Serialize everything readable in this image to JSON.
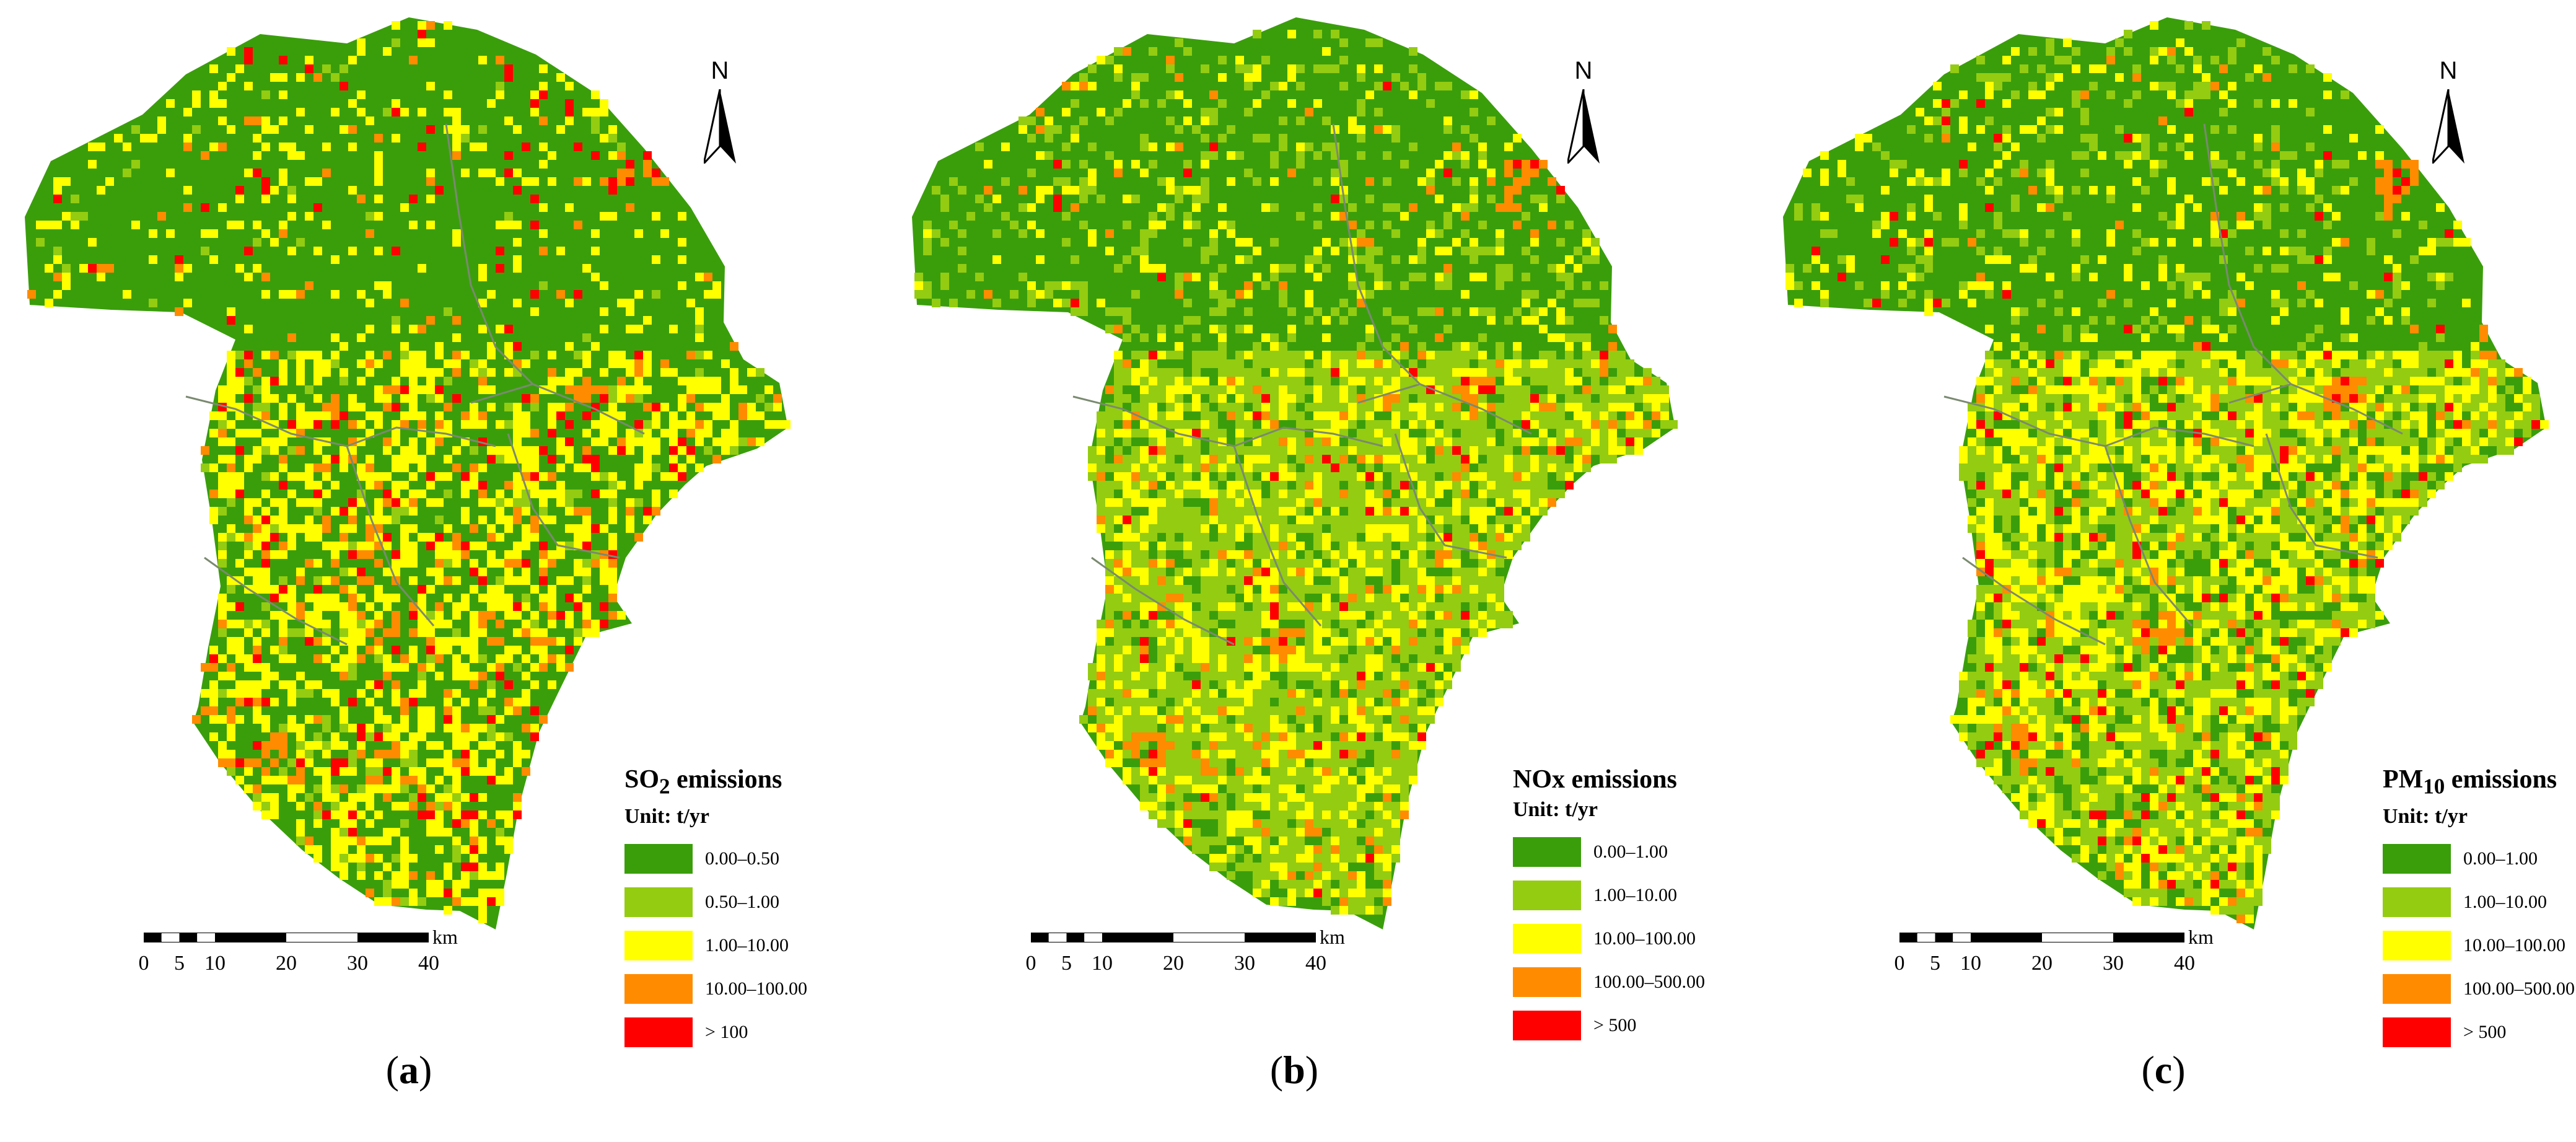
{
  "panels": [
    {
      "id": "a",
      "pollutant_html": "SO<sub>2</sub>",
      "title_suffix": " emissions",
      "unit": "Unit: t/yr",
      "caption_open": "(",
      "caption_letter": "a",
      "caption_close": ")",
      "legend": [
        {
          "label": "0.00–0.50",
          "color": "#3a9e0b"
        },
        {
          "label": "0.50–1.00",
          "color": "#94cc11"
        },
        {
          "label": "1.00–10.00",
          "color": "#ffff00"
        },
        {
          "label": "10.00–100.00",
          "color": "#ff8c00"
        },
        {
          "label": "> 100",
          "color": "#ff0000"
        }
      ],
      "mix": [
        0.7,
        0.03,
        0.2,
        0.04,
        0.03
      ]
    },
    {
      "id": "b",
      "pollutant_html": "NOx",
      "title_suffix": " emissions",
      "unit": "Unit: t/yr",
      "caption_open": "(",
      "caption_letter": "b",
      "caption_close": ")",
      "legend": [
        {
          "label": "0.00–1.00",
          "color": "#3a9e0b"
        },
        {
          "label": "1.00–10.00",
          "color": "#94cc11"
        },
        {
          "label": "10.00–100.00",
          "color": "#ffff00"
        },
        {
          "label": "100.00–500.00",
          "color": "#ff8c00"
        },
        {
          "label": "> 500",
          "color": "#ff0000"
        }
      ],
      "mix": [
        0.52,
        0.3,
        0.14,
        0.03,
        0.01
      ]
    },
    {
      "id": "c",
      "pollutant_html": "PM<sub>10</sub>",
      "title_suffix": " emissions",
      "unit": "Unit: t/yr",
      "caption_open": "(",
      "caption_letter": "c",
      "caption_close": ")",
      "legend": [
        {
          "label": "0.00–1.00",
          "color": "#3a9e0b"
        },
        {
          "label": "1.00–10.00",
          "color": "#94cc11"
        },
        {
          "label": "10.00–100.00",
          "color": "#ffff00"
        },
        {
          "label": "100.00–500.00",
          "color": "#ff8c00"
        },
        {
          "label": "> 500",
          "color": "#ff0000"
        }
      ],
      "mix": [
        0.55,
        0.22,
        0.18,
        0.03,
        0.02
      ]
    }
  ],
  "north_label": "N",
  "scale_bar": {
    "unit": "km",
    "ticks": [
      "0",
      "5",
      "10",
      "20",
      "30",
      "40"
    ],
    "values": [
      0,
      5,
      10,
      20,
      30,
      40
    ]
  }
}
